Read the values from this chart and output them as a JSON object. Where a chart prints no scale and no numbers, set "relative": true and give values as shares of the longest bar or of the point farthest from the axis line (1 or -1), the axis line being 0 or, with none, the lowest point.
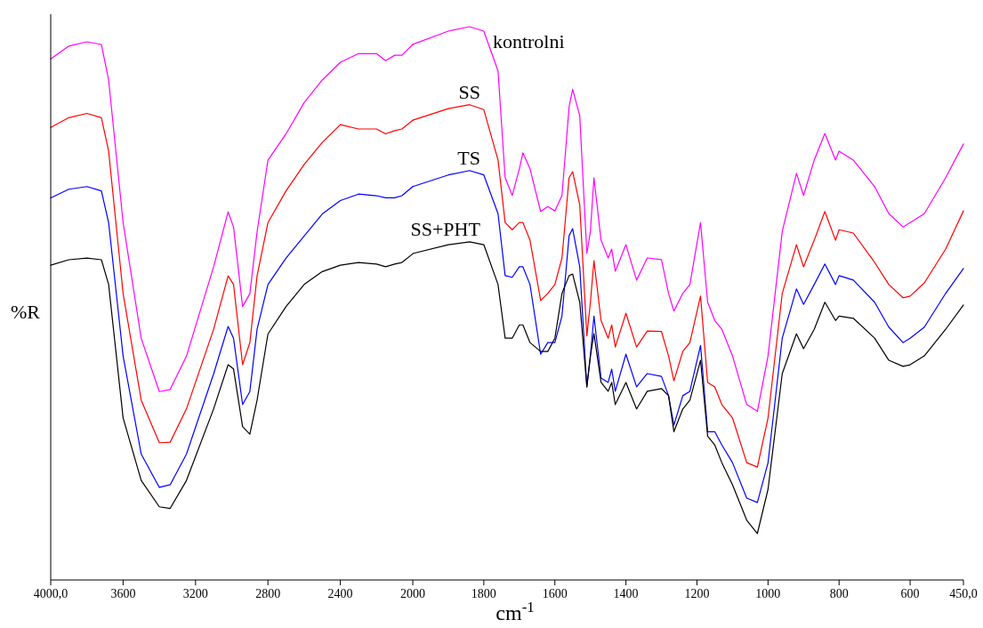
{
  "chart_data": [
    {
      "type": "line",
      "relative": true,
      "ylabel": "%R",
      "legend": false,
      "tick_labels": "x",
      "grid": false,
      "xlim": [
        4000,
        2000
      ],
      "xticks": [
        {
          "value": 4000,
          "label": "4000,0"
        },
        3600,
        3200,
        2800,
        2400,
        2000
      ],
      "x": [
        4000,
        3900,
        3800,
        3720,
        3680,
        3600,
        3500,
        3400,
        3340,
        3250,
        3100,
        3020,
        2990,
        2940,
        2900,
        2860,
        2800,
        2700,
        2600,
        2500,
        2400,
        2300,
        2200,
        2150,
        2100,
        2060,
        2000
      ],
      "series": [
        {
          "color": "#ff00ff",
          "values": [
            0.968,
            0.992,
            1,
            0.995,
            0.929,
            0.664,
            0.449,
            0.35,
            0.354,
            0.416,
            0.582,
            0.684,
            0.656,
            0.508,
            0.532,
            0.647,
            0.78,
            0.829,
            0.887,
            0.929,
            0.962,
            0.978,
            0.978,
            0.965,
            0.975,
            0.975,
            0.995
          ]
        },
        {
          "color": "#ff0000",
          "values": [
            0.841,
            0.859,
            0.867,
            0.859,
            0.797,
            0.532,
            0.334,
            0.255,
            0.256,
            0.318,
            0.466,
            0.565,
            0.549,
            0.4,
            0.441,
            0.565,
            0.664,
            0.723,
            0.772,
            0.813,
            0.846,
            0.838,
            0.838,
            0.829,
            0.835,
            0.838,
            0.854
          ]
        },
        {
          "color": "#0000ff",
          "values": [
            0.71,
            0.726,
            0.731,
            0.723,
            0.664,
            0.416,
            0.234,
            0.172,
            0.177,
            0.234,
            0.383,
            0.471,
            0.449,
            0.326,
            0.35,
            0.466,
            0.549,
            0.598,
            0.639,
            0.68,
            0.705,
            0.717,
            0.714,
            0.71,
            0.71,
            0.714,
            0.731
          ]
        },
        {
          "color": "#000000",
          "values": [
            0.585,
            0.595,
            0.598,
            0.595,
            0.549,
            0.301,
            0.185,
            0.136,
            0.133,
            0.185,
            0.318,
            0.4,
            0.392,
            0.285,
            0.271,
            0.334,
            0.457,
            0.508,
            0.549,
            0.573,
            0.585,
            0.59,
            0.587,
            0.582,
            0.587,
            0.59,
            0.606
          ]
        }
      ]
    },
    {
      "type": "line",
      "relative": true,
      "xlabel": "cm$^{-1}$",
      "legend": false,
      "tick_labels": "x",
      "grid": false,
      "xlim": [
        2000,
        450
      ],
      "xticks": [
        1800,
        1600,
        1400,
        1200,
        1000,
        800,
        600,
        {
          "value": 450,
          "label": "450,0"
        }
      ],
      "x": [
        2000,
        1900,
        1840,
        1800,
        1760,
        1740,
        1720,
        1700,
        1690,
        1670,
        1640,
        1620,
        1600,
        1580,
        1560,
        1550,
        1530,
        1510,
        1500,
        1490,
        1470,
        1450,
        1440,
        1430,
        1400,
        1370,
        1340,
        1300,
        1280,
        1265,
        1240,
        1220,
        1190,
        1170,
        1150,
        1130,
        1100,
        1060,
        1030,
        1000,
        960,
        920,
        900,
        870,
        840,
        810,
        800,
        760,
        700,
        660,
        620,
        600,
        560,
        500,
        450
      ],
      "series": [
        {
          "name": "kontrolni",
          "color": "#ff00ff",
          "values": [
            0.968,
            0.992,
            1,
            0.992,
            0.92,
            0.727,
            0.695,
            0.743,
            0.772,
            0.743,
            0.666,
            0.675,
            0.667,
            0.695,
            0.855,
            0.887,
            0.839,
            0.59,
            0.63,
            0.727,
            0.614,
            0.582,
            0.598,
            0.558,
            0.606,
            0.542,
            0.582,
            0.579,
            0.518,
            0.486,
            0.518,
            0.534,
            0.646,
            0.502,
            0.469,
            0.453,
            0.405,
            0.317,
            0.305,
            0.405,
            0.63,
            0.735,
            0.695,
            0.759,
            0.807,
            0.759,
            0.775,
            0.759,
            0.711,
            0.662,
            0.638,
            0.646,
            0.662,
            0.727,
            0.788
          ]
        },
        {
          "name": "SS",
          "color": "#ff0000",
          "values": [
            0.831,
            0.852,
            0.859,
            0.85,
            0.759,
            0.646,
            0.633,
            0.646,
            0.646,
            0.614,
            0.505,
            0.518,
            0.534,
            0.582,
            0.727,
            0.738,
            0.678,
            0.441,
            0.502,
            0.577,
            0.469,
            0.437,
            0.461,
            0.421,
            0.482,
            0.421,
            0.45,
            0.449,
            0.405,
            0.36,
            0.413,
            0.429,
            0.513,
            0.357,
            0.349,
            0.317,
            0.293,
            0.212,
            0.204,
            0.293,
            0.518,
            0.606,
            0.566,
            0.614,
            0.666,
            0.614,
            0.633,
            0.627,
            0.574,
            0.534,
            0.51,
            0.513,
            0.537,
            0.598,
            0.667
          ]
        },
        {
          "name": "TS",
          "color": "#0000ff",
          "values": [
            0.711,
            0.732,
            0.74,
            0.732,
            0.662,
            0.55,
            0.547,
            0.566,
            0.566,
            0.534,
            0.408,
            0.429,
            0.429,
            0.477,
            0.622,
            0.635,
            0.566,
            0.349,
            0.405,
            0.477,
            0.365,
            0.357,
            0.381,
            0.341,
            0.408,
            0.349,
            0.373,
            0.368,
            0.333,
            0.28,
            0.333,
            0.341,
            0.424,
            0.268,
            0.268,
            0.244,
            0.212,
            0.148,
            0.14,
            0.212,
            0.437,
            0.526,
            0.498,
            0.534,
            0.571,
            0.534,
            0.55,
            0.542,
            0.502,
            0.457,
            0.429,
            0.437,
            0.457,
            0.518,
            0.563
          ]
        },
        {
          "name": "SS+PHT",
          "color": "#000000",
          "values": [
            0.59,
            0.606,
            0.611,
            0.606,
            0.534,
            0.437,
            0.437,
            0.461,
            0.461,
            0.429,
            0.413,
            0.413,
            0.437,
            0.518,
            0.55,
            0.553,
            0.502,
            0.349,
            0.405,
            0.445,
            0.357,
            0.341,
            0.357,
            0.317,
            0.357,
            0.309,
            0.341,
            0.346,
            0.333,
            0.268,
            0.309,
            0.325,
            0.397,
            0.26,
            0.244,
            0.212,
            0.172,
            0.108,
            0.084,
            0.164,
            0.373,
            0.445,
            0.418,
            0.453,
            0.502,
            0.469,
            0.477,
            0.473,
            0.437,
            0.397,
            0.386,
            0.389,
            0.405,
            0.453,
            0.497
          ]
        }
      ]
    }
  ]
}
